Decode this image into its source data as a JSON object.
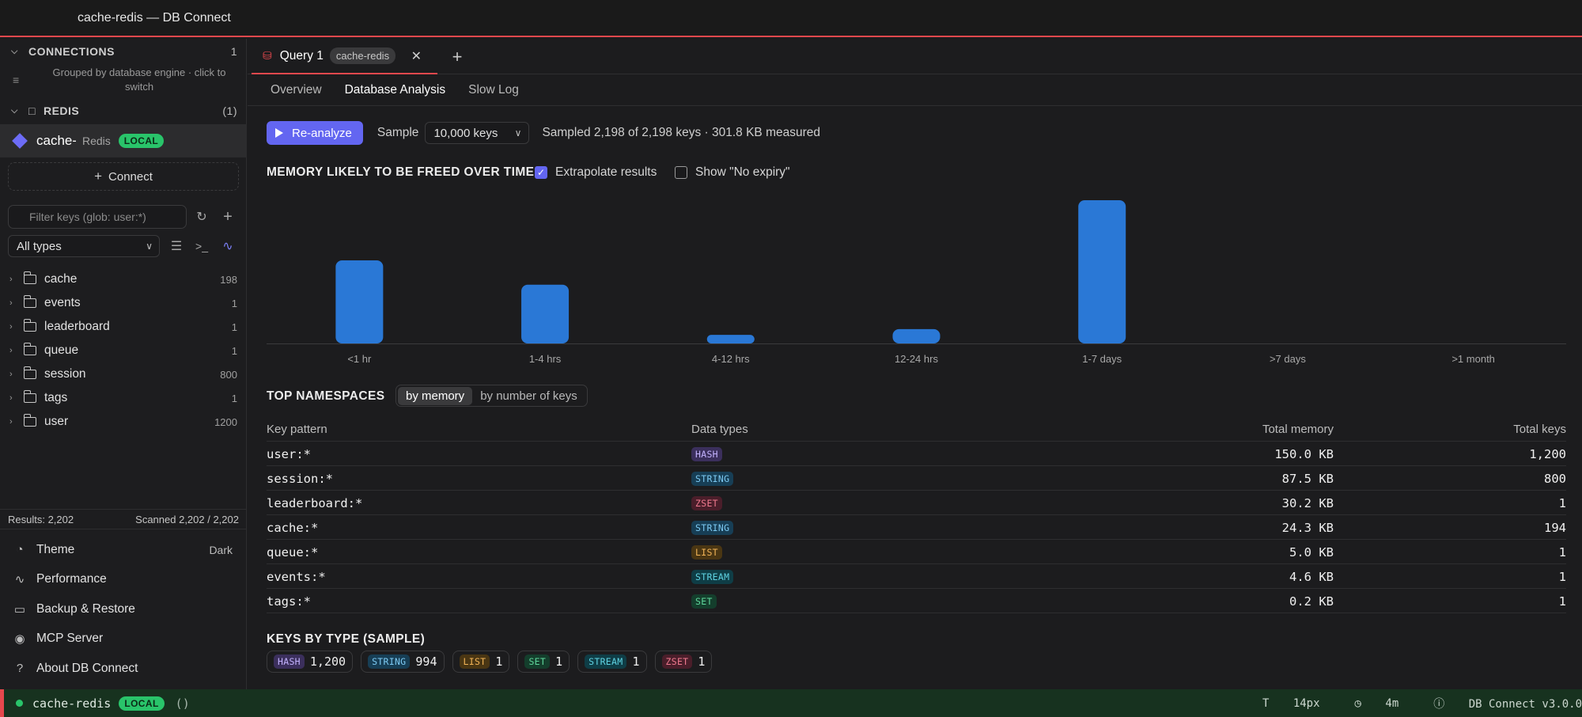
{
  "window": {
    "title": "cache-redis — DB Connect"
  },
  "sidebar": {
    "connections_header": "CONNECTIONS",
    "connections_count": "1",
    "group_hint": "Grouped by database engine · click to switch",
    "group_name": "REDIS",
    "group_count": "(1)",
    "connection": {
      "name": "cache-redis",
      "engine": "Redis",
      "badge": "LOCAL"
    },
    "connect_label": "Connect",
    "filter_placeholder": "Filter keys (glob: user:*)",
    "type_filter": "All types",
    "tree": [
      {
        "name": "cache",
        "count": "198"
      },
      {
        "name": "events",
        "count": "1"
      },
      {
        "name": "leaderboard",
        "count": "1"
      },
      {
        "name": "queue",
        "count": "1"
      },
      {
        "name": "session",
        "count": "800"
      },
      {
        "name": "tags",
        "count": "1"
      },
      {
        "name": "user",
        "count": "1200"
      }
    ],
    "results": "Results: 2,202",
    "scanned": "Scanned 2,202 / 2,202",
    "menu": [
      {
        "label": "Theme",
        "value": "Dark",
        "icon": "palette-icon"
      },
      {
        "label": "Performance",
        "value": "",
        "icon": "activity-icon"
      },
      {
        "label": "Backup & Restore",
        "value": "",
        "icon": "drive-icon"
      },
      {
        "label": "MCP Server",
        "value": "",
        "icon": "broadcast-icon"
      },
      {
        "label": "About DB Connect",
        "value": "",
        "icon": "help-icon"
      }
    ]
  },
  "tabs": [
    {
      "label": "Query 1",
      "chip": "cache-redis"
    }
  ],
  "subtabs": [
    "Overview",
    "Database Analysis",
    "Slow Log"
  ],
  "toolbar": {
    "reanalyze": "Re-analyze",
    "sample_label": "Sample",
    "sample_value": "10,000 keys",
    "stats": "Sampled 2,198 of 2,198 keys · 301.8 KB measured"
  },
  "memory_section": {
    "title": "MEMORY LIKELY TO BE FREED OVER TIME",
    "extrapolate_label": "Extrapolate results",
    "no_expiry_label": "Show \"No expiry\""
  },
  "chart_data": {
    "type": "bar",
    "categories": [
      "<1 hr",
      "1-4 hrs",
      "4-12 hrs",
      "12-24 hrs",
      "1-7 days",
      ">7 days",
      ">1 month"
    ],
    "values": [
      58,
      41,
      6,
      10,
      100,
      0,
      0
    ],
    "title": "MEMORY LIKELY TO BE FREED OVER TIME",
    "ylim": [
      0,
      100
    ],
    "grid": false,
    "color": "#2a78d6"
  },
  "namespaces": {
    "title": "TOP NAMESPACES",
    "toggle": [
      "by memory",
      "by number of keys"
    ],
    "columns": [
      "Key pattern",
      "Data types",
      "Total memory",
      "Total keys"
    ],
    "rows": [
      {
        "pattern": "user:*",
        "type": "HASH",
        "memory": "150.0 KB",
        "keys": "1,200"
      },
      {
        "pattern": "session:*",
        "type": "STRING",
        "memory": "87.5 KB",
        "keys": "800"
      },
      {
        "pattern": "leaderboard:*",
        "type": "ZSET",
        "memory": "30.2 KB",
        "keys": "1"
      },
      {
        "pattern": "cache:*",
        "type": "STRING",
        "memory": "24.3 KB",
        "keys": "194"
      },
      {
        "pattern": "queue:*",
        "type": "LIST",
        "memory": "5.0 KB",
        "keys": "1"
      },
      {
        "pattern": "events:*",
        "type": "STREAM",
        "memory": "4.6 KB",
        "keys": "1"
      },
      {
        "pattern": "tags:*",
        "type": "SET",
        "memory": "0.2 KB",
        "keys": "1"
      }
    ]
  },
  "keys_by_type": {
    "title": "KEYS BY TYPE (SAMPLE)",
    "items": [
      {
        "type": "HASH",
        "count": "1,200"
      },
      {
        "type": "STRING",
        "count": "994"
      },
      {
        "type": "LIST",
        "count": "1"
      },
      {
        "type": "SET",
        "count": "1"
      },
      {
        "type": "STREAM",
        "count": "1"
      },
      {
        "type": "ZSET",
        "count": "1"
      }
    ]
  },
  "type_colors": {
    "HASH": {
      "bg": "#3b2f5c",
      "fg": "#c4b3ff"
    },
    "STRING": {
      "bg": "#173e55",
      "fg": "#7cc9f2"
    },
    "ZSET": {
      "bg": "#4a1e2a",
      "fg": "#f0798f"
    },
    "LIST": {
      "bg": "#4a3613",
      "fg": "#f2b457"
    },
    "STREAM": {
      "bg": "#0f3d46",
      "fg": "#5fd3e3"
    },
    "SET": {
      "bg": "#143e2c",
      "fg": "#5fd69b"
    }
  },
  "statusbar": {
    "connection": "cache-redis",
    "badge": "LOCAL",
    "extra": "()",
    "font_size": "14px",
    "uptime": "4m",
    "version": "DB Connect v3.0.0"
  }
}
